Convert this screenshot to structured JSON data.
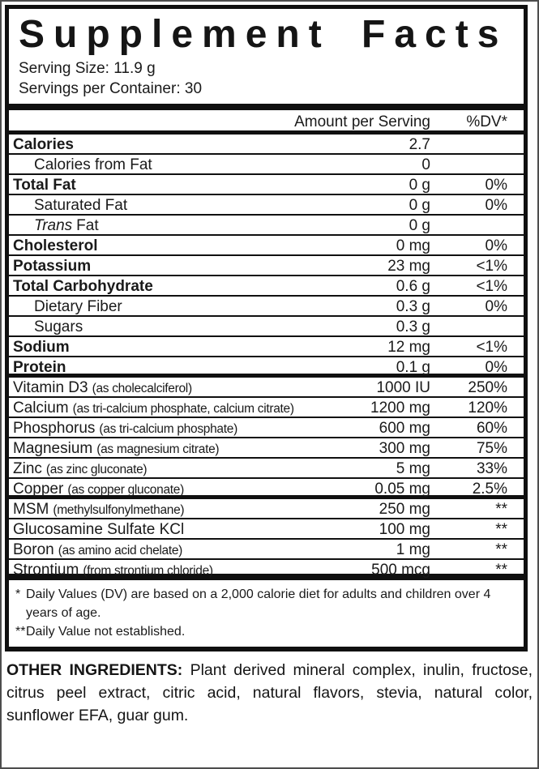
{
  "label": {
    "title": "Supplement Facts",
    "serving_size": "Serving Size: 11.9 g",
    "servings_per_container": "Servings per Container: 30",
    "header": {
      "amount": "Amount per Serving",
      "dv": "%DV*"
    },
    "rows": [
      {
        "label": "Calories",
        "amount": "2.7",
        "dv": "",
        "bold": true,
        "divider_after": "thin"
      },
      {
        "label": "Calories from Fat",
        "amount": "0",
        "dv": "",
        "indent": true,
        "divider_after": "thin"
      },
      {
        "label": "Total Fat",
        "amount": "0 g",
        "dv": "0%",
        "bold": true,
        "divider_after": "thin"
      },
      {
        "label": "Saturated Fat",
        "amount": "0 g",
        "dv": "0%",
        "indent": true,
        "divider_after": "thin"
      },
      {
        "label_italic": "Trans",
        "label": "Fat",
        "amount": "0 g",
        "dv": "",
        "indent": true,
        "divider_after": "thin"
      },
      {
        "label": "Cholesterol",
        "amount": "0 mg",
        "dv": "0%",
        "bold": true,
        "divider_after": "thin"
      },
      {
        "label": "Potassium",
        "amount": "23 mg",
        "dv": "<1%",
        "bold": true,
        "divider_after": "thin"
      },
      {
        "label": "Total Carbohydrate",
        "amount": "0.6 g",
        "dv": "<1%",
        "bold": true,
        "divider_after": "thin"
      },
      {
        "label": "Dietary Fiber",
        "amount": "0.3 g",
        "dv": "0%",
        "indent": true,
        "divider_after": "thin"
      },
      {
        "label": "Sugars",
        "amount": "0.3 g",
        "dv": "",
        "indent": true,
        "divider_after": "thin"
      },
      {
        "label": "Sodium",
        "amount": "12 mg",
        "dv": "<1%",
        "bold": true,
        "divider_after": "thin"
      },
      {
        "label": "Protein",
        "amount": "0.1 g",
        "dv": "0%",
        "bold": true,
        "divider_after": "medium"
      },
      {
        "label": "Vitamin D3",
        "sub": "(as cholecalciferol)",
        "amount": "1000 IU",
        "dv": "250%",
        "divider_after": "thin"
      },
      {
        "label": "Calcium",
        "sub": "(as tri-calcium phosphate, calcium citrate)",
        "amount": "1200 mg",
        "dv": "120%",
        "divider_after": "thin"
      },
      {
        "label": "Phosphorus",
        "sub": "(as tri-calcium phosphate)",
        "amount": "600 mg",
        "dv": "60%",
        "divider_after": "thin"
      },
      {
        "label": "Magnesium",
        "sub": "(as magnesium citrate)",
        "amount": "300 mg",
        "dv": "75%",
        "divider_after": "thin"
      },
      {
        "label": "Zinc",
        "sub": "(as zinc gluconate)",
        "amount": "5 mg",
        "dv": "33%",
        "divider_after": "thin"
      },
      {
        "label": "Copper",
        "sub": "(as copper gluconate)",
        "amount": "0.05 mg",
        "dv": "2.5%",
        "divider_after": "medium"
      },
      {
        "label": "MSM",
        "sub": "(methylsulfonylmethane)",
        "amount": "250 mg",
        "dv": "**",
        "divider_after": "thin"
      },
      {
        "label": "Glucosamine Sulfate KCl",
        "amount": "100 mg",
        "dv": "**",
        "divider_after": "thin"
      },
      {
        "label": "Boron",
        "sub": "(as amino acid chelate)",
        "amount": "1 mg",
        "dv": "**",
        "divider_after": "thin"
      },
      {
        "label": "Strontium",
        "sub": "(from strontium chloride)",
        "amount": "500 mcg",
        "dv": "**",
        "divider_after": "thick"
      }
    ],
    "footnotes": [
      {
        "marker": "*",
        "text": "Daily Values (DV) are based on a 2,000 calorie diet for adults and children over 4 years of age."
      },
      {
        "marker": "**",
        "text": "Daily Value not established."
      }
    ],
    "other_ingredients": {
      "label": "OTHER INGREDIENTS:",
      "text": "Plant derived mineral complex, inulin, fructose, citrus peel extract, citric acid, natural flavors, stevia, natural color, sunflower EFA, guar gum."
    },
    "colors": {
      "text": "#1a1a1a",
      "rule": "#101010",
      "frame": "#4d4d4d",
      "background": "#ffffff"
    }
  }
}
